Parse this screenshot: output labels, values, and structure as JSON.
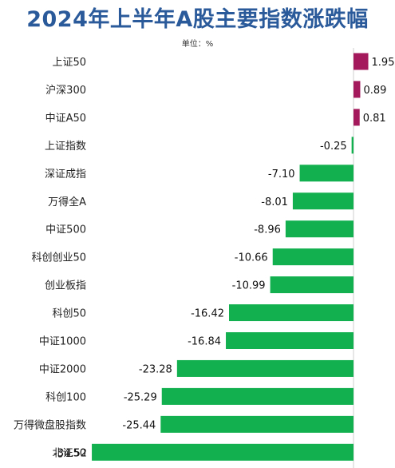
{
  "chart_data": {
    "type": "bar",
    "orientation": "horizontal",
    "title": "2024年上半年A股主要指数涨跌幅",
    "unit_label": "单位：%",
    "categories": [
      "上证50",
      "沪深300",
      "中证A50",
      "上证指数",
      "深证成指",
      "万得全A",
      "中证500",
      "科创创业50",
      "创业板指",
      "科创50",
      "中证1000",
      "中证2000",
      "科创100",
      "万得微盘股指数",
      "北证50"
    ],
    "values": [
      1.95,
      0.89,
      0.81,
      -0.25,
      -7.1,
      -8.01,
      -8.96,
      -10.66,
      -10.99,
      -16.42,
      -16.84,
      -23.28,
      -25.29,
      -25.44,
      -34.52
    ],
    "value_labels": [
      "1.95",
      "0.89",
      "0.81",
      "-0.25",
      "-7.10",
      "-8.01",
      "-8.96",
      "-10.66",
      "-10.99",
      "-16.42",
      "-16.84",
      "-23.28",
      "-25.29",
      "-25.44",
      "-34.52"
    ],
    "colors": {
      "positive": "#a3195b",
      "negative": "#12b04f",
      "title": "#2b5a9b"
    },
    "grid": false,
    "legend": "none"
  }
}
